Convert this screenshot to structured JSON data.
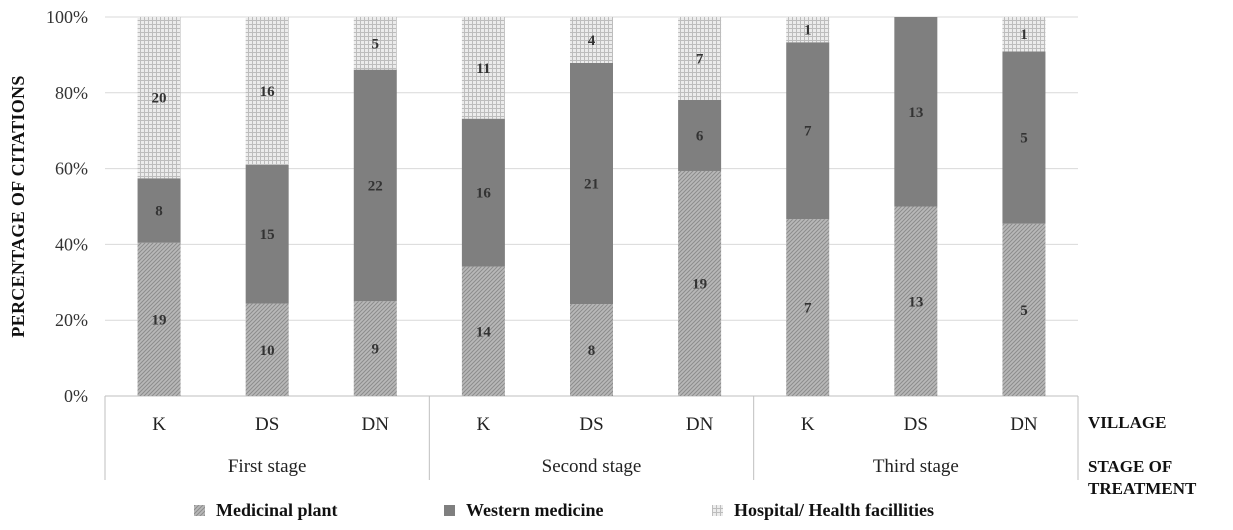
{
  "chart_data": {
    "type": "bar",
    "stacked": true,
    "percent": true,
    "ylabel": "PERCENTAGE OF CITATIONS",
    "yticks": [
      "0%",
      "20%",
      "40%",
      "60%",
      "80%",
      "100%"
    ],
    "ylim": [
      0,
      100
    ],
    "grid": true,
    "categories": [
      "K",
      "DS",
      "DN",
      "K",
      "DS",
      "DN",
      "K",
      "DS",
      "DN"
    ],
    "groups": [
      {
        "label": "First stage",
        "count": 3
      },
      {
        "label": "Second stage",
        "count": 3
      },
      {
        "label": "Third stage",
        "count": 3
      }
    ],
    "category_axis_label": "VILLAGE",
    "group_axis_label_lines": [
      "STAGE OF",
      "TREATMENT"
    ],
    "series": [
      {
        "name": "Medicinal plant",
        "values": [
          19,
          10,
          9,
          14,
          8,
          19,
          7,
          13,
          5
        ],
        "color": "#b0b0b0",
        "pattern": "diag"
      },
      {
        "name": "Western medicine",
        "values": [
          8,
          15,
          22,
          16,
          21,
          6,
          7,
          13,
          5
        ],
        "color": "#7f7f7f",
        "pattern": "solid"
      },
      {
        "name": "Hospital/ Health facillities",
        "values": [
          20,
          16,
          5,
          11,
          4,
          7,
          1,
          0,
          1
        ],
        "color": "#d9d9d9",
        "pattern": "grid"
      }
    ],
    "legend_position": "bottom"
  }
}
